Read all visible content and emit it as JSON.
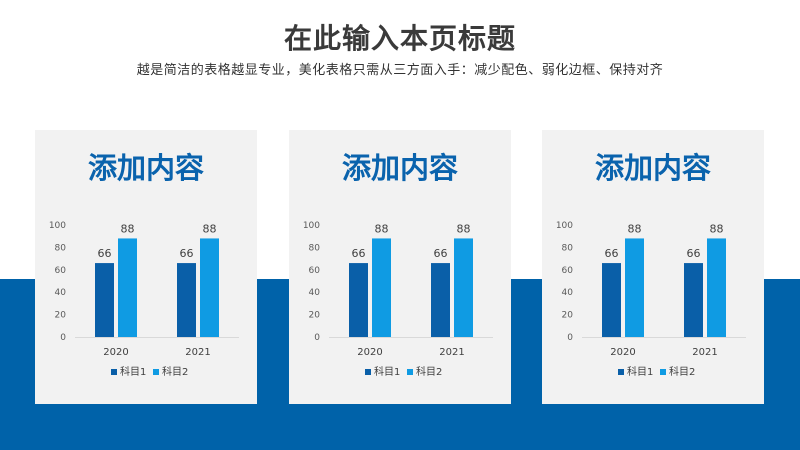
{
  "page": {
    "title": "在此输入本页标题",
    "subtitle": "越是简洁的表格越显专业，美化表格只需从三方面入手：减少配色、弱化边框、保持对齐"
  },
  "colors": {
    "band": "#0062a9",
    "card": "#f2f2f2",
    "card_title": "#0a63ad",
    "series1": "#0a5fa8",
    "series2": "#0f9be3"
  },
  "cards": [
    {
      "title": "添加内容"
    },
    {
      "title": "添加内容"
    },
    {
      "title": "添加内容"
    }
  ],
  "chart_data": [
    {
      "type": "bar",
      "categories": [
        "2020",
        "2021"
      ],
      "series": [
        {
          "name": "科目1",
          "values": [
            66,
            66
          ]
        },
        {
          "name": "科目2",
          "values": [
            88,
            88
          ]
        }
      ],
      "yticks": [
        "0",
        "20",
        "40",
        "60",
        "80",
        "100"
      ],
      "ylim": [
        0,
        100
      ],
      "legend": "bottom"
    },
    {
      "type": "bar",
      "categories": [
        "2020",
        "2021"
      ],
      "series": [
        {
          "name": "科目1",
          "values": [
            66,
            66
          ]
        },
        {
          "name": "科目2",
          "values": [
            88,
            88
          ]
        }
      ],
      "yticks": [
        "0",
        "20",
        "40",
        "60",
        "80",
        "100"
      ],
      "ylim": [
        0,
        100
      ],
      "legend": "bottom"
    },
    {
      "type": "bar",
      "categories": [
        "2020",
        "2021"
      ],
      "series": [
        {
          "name": "科目1",
          "values": [
            66,
            66
          ]
        },
        {
          "name": "科目2",
          "values": [
            88,
            88
          ]
        }
      ],
      "yticks": [
        "0",
        "20",
        "40",
        "60",
        "80",
        "100"
      ],
      "ylim": [
        0,
        100
      ],
      "legend": "bottom"
    }
  ]
}
